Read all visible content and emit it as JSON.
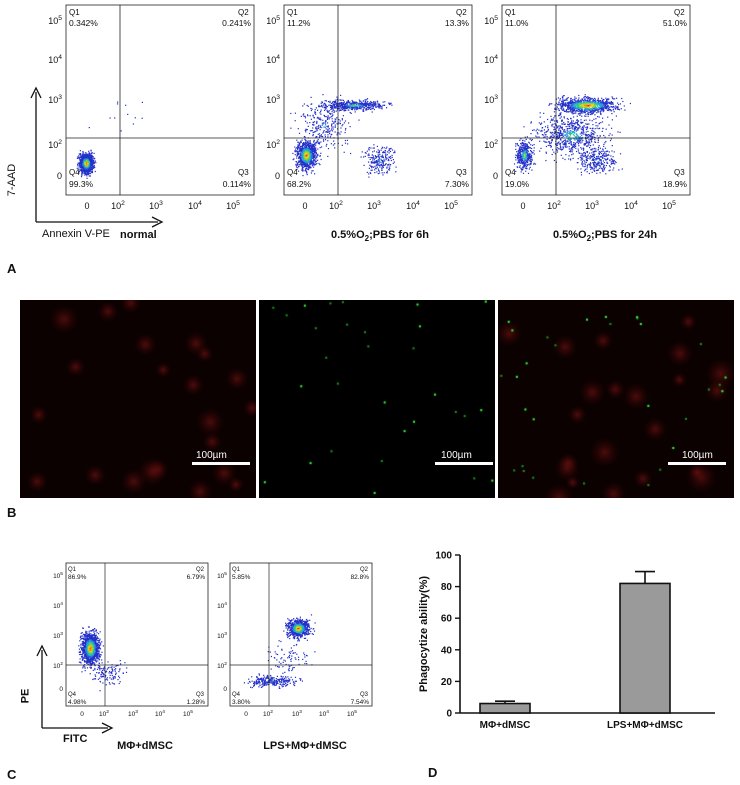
{
  "figure_a": {
    "letter": "A",
    "y_axis_label": "7-AAD",
    "x_axis_label": "Annexin V-PE",
    "x_ticks": [
      "0",
      "10^2",
      "10^3",
      "10^4",
      "10^5"
    ],
    "y_ticks": [
      "0",
      "10^2",
      "10^3",
      "10^4",
      "10^5"
    ],
    "plots": [
      {
        "title_parts": [
          "normal"
        ],
        "q1": "0.342%",
        "q2": "0.241%",
        "q3": "0.114%",
        "q4": "99.3%"
      },
      {
        "title_parts": [
          "0.5%O",
          "2",
          ";PBS for 6h"
        ],
        "q1": "11.2%",
        "q2": "13.3%",
        "q3": "7.30%",
        "q4": "68.2%"
      },
      {
        "title_parts": [
          "0.5%O",
          "2",
          ";PBS for 24h"
        ],
        "q1": "11.0%",
        "q2": "51.0%",
        "q3": "18.9%",
        "q4": "19.0%"
      }
    ]
  },
  "figure_b": {
    "letter": "B",
    "scale_label": "100µm",
    "panels": [
      "red",
      "green",
      "merge"
    ]
  },
  "figure_c": {
    "letter": "C",
    "y_axis_label": "PE",
    "x_axis_label": "FITC",
    "plots": [
      {
        "title": "MΦ+dMSC",
        "q1": "86.9%",
        "q2": "6.79%",
        "q3": "1.28%",
        "q4": "4.98%"
      },
      {
        "title": "LPS+MΦ+dMSC",
        "q1": "5.85%",
        "q2": "82.8%",
        "q3": "7.54%",
        "q4": "3.80%"
      }
    ]
  },
  "figure_d": {
    "letter": "D"
  },
  "colors": {
    "bar_fill": "#9a9a9a",
    "density_high": "#e02020",
    "density_low": "#2030d0"
  },
  "chart_data": {
    "type": "bar",
    "categories": [
      "MΦ+dMSC",
      "LPS+MΦ+dMSC"
    ],
    "values": [
      6,
      82
    ],
    "errors": [
      1.5,
      7.5
    ],
    "title": "",
    "xlabel": "",
    "ylabel": "Phagocytize ability(%)",
    "ylim": [
      0,
      100
    ],
    "yticks": [
      0,
      20,
      40,
      60,
      80,
      100
    ],
    "grid": false
  }
}
